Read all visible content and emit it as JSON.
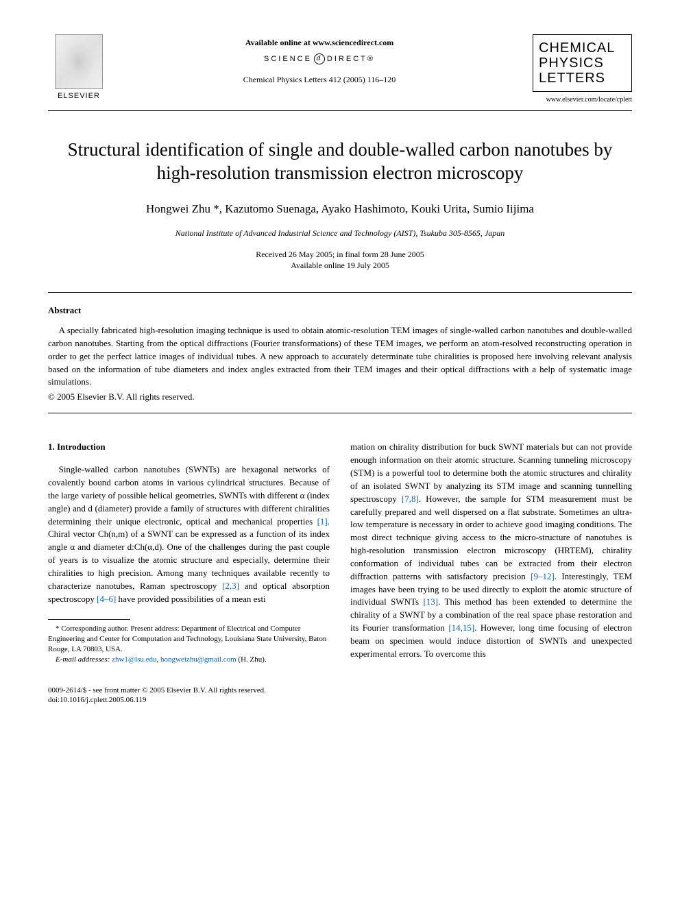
{
  "header": {
    "publisher": "ELSEVIER",
    "available_online": "Available online at www.sciencedirect.com",
    "science_direct_left": "SCIENCE",
    "science_direct_right": "DIRECT®",
    "sd_circle": "d",
    "journal_reference": "Chemical Physics Letters 412 (2005) 116–120",
    "journal_logo_line1": "CHEMICAL",
    "journal_logo_line2": "PHYSICS",
    "journal_logo_line3": "LETTERS",
    "journal_url": "www.elsevier.com/locate/cplett"
  },
  "article": {
    "title": "Structural identification of single and double-walled carbon nanotubes by high-resolution transmission electron microscopy",
    "authors": "Hongwei Zhu *, Kazutomo Suenaga, Ayako Hashimoto, Kouki Urita, Sumio Iijima",
    "affiliation": "National Institute of Advanced Industrial Science and Technology (AIST), Tsukuba 305-8565, Japan",
    "received": "Received 26 May 2005; in final form 28 June 2005",
    "available": "Available online 19 July 2005"
  },
  "abstract": {
    "heading": "Abstract",
    "text": "A specially fabricated high-resolution imaging technique is used to obtain atomic-resolution TEM images of single-walled carbon nanotubes and double-walled carbon nanotubes. Starting from the optical diffractions (Fourier transformations) of these TEM images, we perform an atom-resolved reconstructing operation in order to get the perfect lattice images of individual tubes. A new approach to accurately determinate tube chiralities is proposed here involving relevant analysis based on the information of tube diameters and index angles extracted from their TEM images and their optical diffractions with a help of systematic image simulations.",
    "copyright": "© 2005 Elsevier B.V. All rights reserved."
  },
  "body": {
    "section_heading": "1. Introduction",
    "col1_part1": "Single-walled carbon nanotubes (SWNTs) are hexagonal networks of covalently bound carbon atoms in various cylindrical structures. Because of the large variety of possible helical geometries, SWNTs with different α (index angle) and d (diameter) provide a family of structures with different chiralities determining their unique electronic, optical and mechanical properties ",
    "ref1": "[1]",
    "col1_part2": ". Chiral vector Ch(n,m) of a SWNT can be expressed as a function of its index angle α and diameter d:Ch(α,d). One of the challenges during the past couple of years is to visualize the atomic structure and especially, determine their chiralities to high precision. Among many techniques available recently to characterize nanotubes, Raman spectroscopy ",
    "ref23": "[2,3]",
    "col1_part3": " and optical absorption spectroscopy ",
    "ref46": "[4–6]",
    "col1_part4": " have provided possibilities of a mean esti",
    "col2_part1": "mation on chirality distribution for buck SWNT materials but can not provide enough information on their atomic structure. Scanning tunneling microscopy (STM) is a powerful tool to determine both the atomic structures and chirality of an isolated SWNT by analyzing its STM image and scanning tunnelling spectroscopy ",
    "ref78": "[7,8]",
    "col2_part2": ". However, the sample for STM measurement must be carefully prepared and well dispersed on a flat substrate. Sometimes an ultra-low temperature is necessary in order to achieve good imaging conditions. The most direct technique giving access to the micro-structure of nanotubes is high-resolution transmission electron microscopy (HRTEM), chirality conformation of individual tubes can be extracted from their electron diffraction patterns with satisfactory precision ",
    "ref912": "[9–12]",
    "col2_part3": ". Interestingly, TEM images have been trying to be used directly to exploit the atomic structure of individual SWNTs ",
    "ref13": "[13]",
    "col2_part4": ". This method has been extended to determine the chirality of a SWNT by a combination of the real space phase restoration and its Fourier transformation ",
    "ref1415": "[14,15]",
    "col2_part5": ". However, long time focusing of electron beam on specimen would induce distortion of SWNTs and unexpected experimental errors. To overcome this"
  },
  "footnote": {
    "corresponding": "* Corresponding author. Present address: Department of Electrical and Computer Engineering and Center for Computation and Technology, Louisiana State University, Baton Rouge, LA 70803, USA.",
    "email_label": "E-mail addresses:",
    "email1": "zhw1@lsu.edu",
    "email_sep": ", ",
    "email2": "hongweizhu@gmail.com",
    "email_tail": " (H. Zhu)."
  },
  "bottom": {
    "issn": "0009-2614/$ - see front matter © 2005 Elsevier B.V. All rights reserved.",
    "doi": "doi:10.1016/j.cplett.2005.06.119"
  }
}
